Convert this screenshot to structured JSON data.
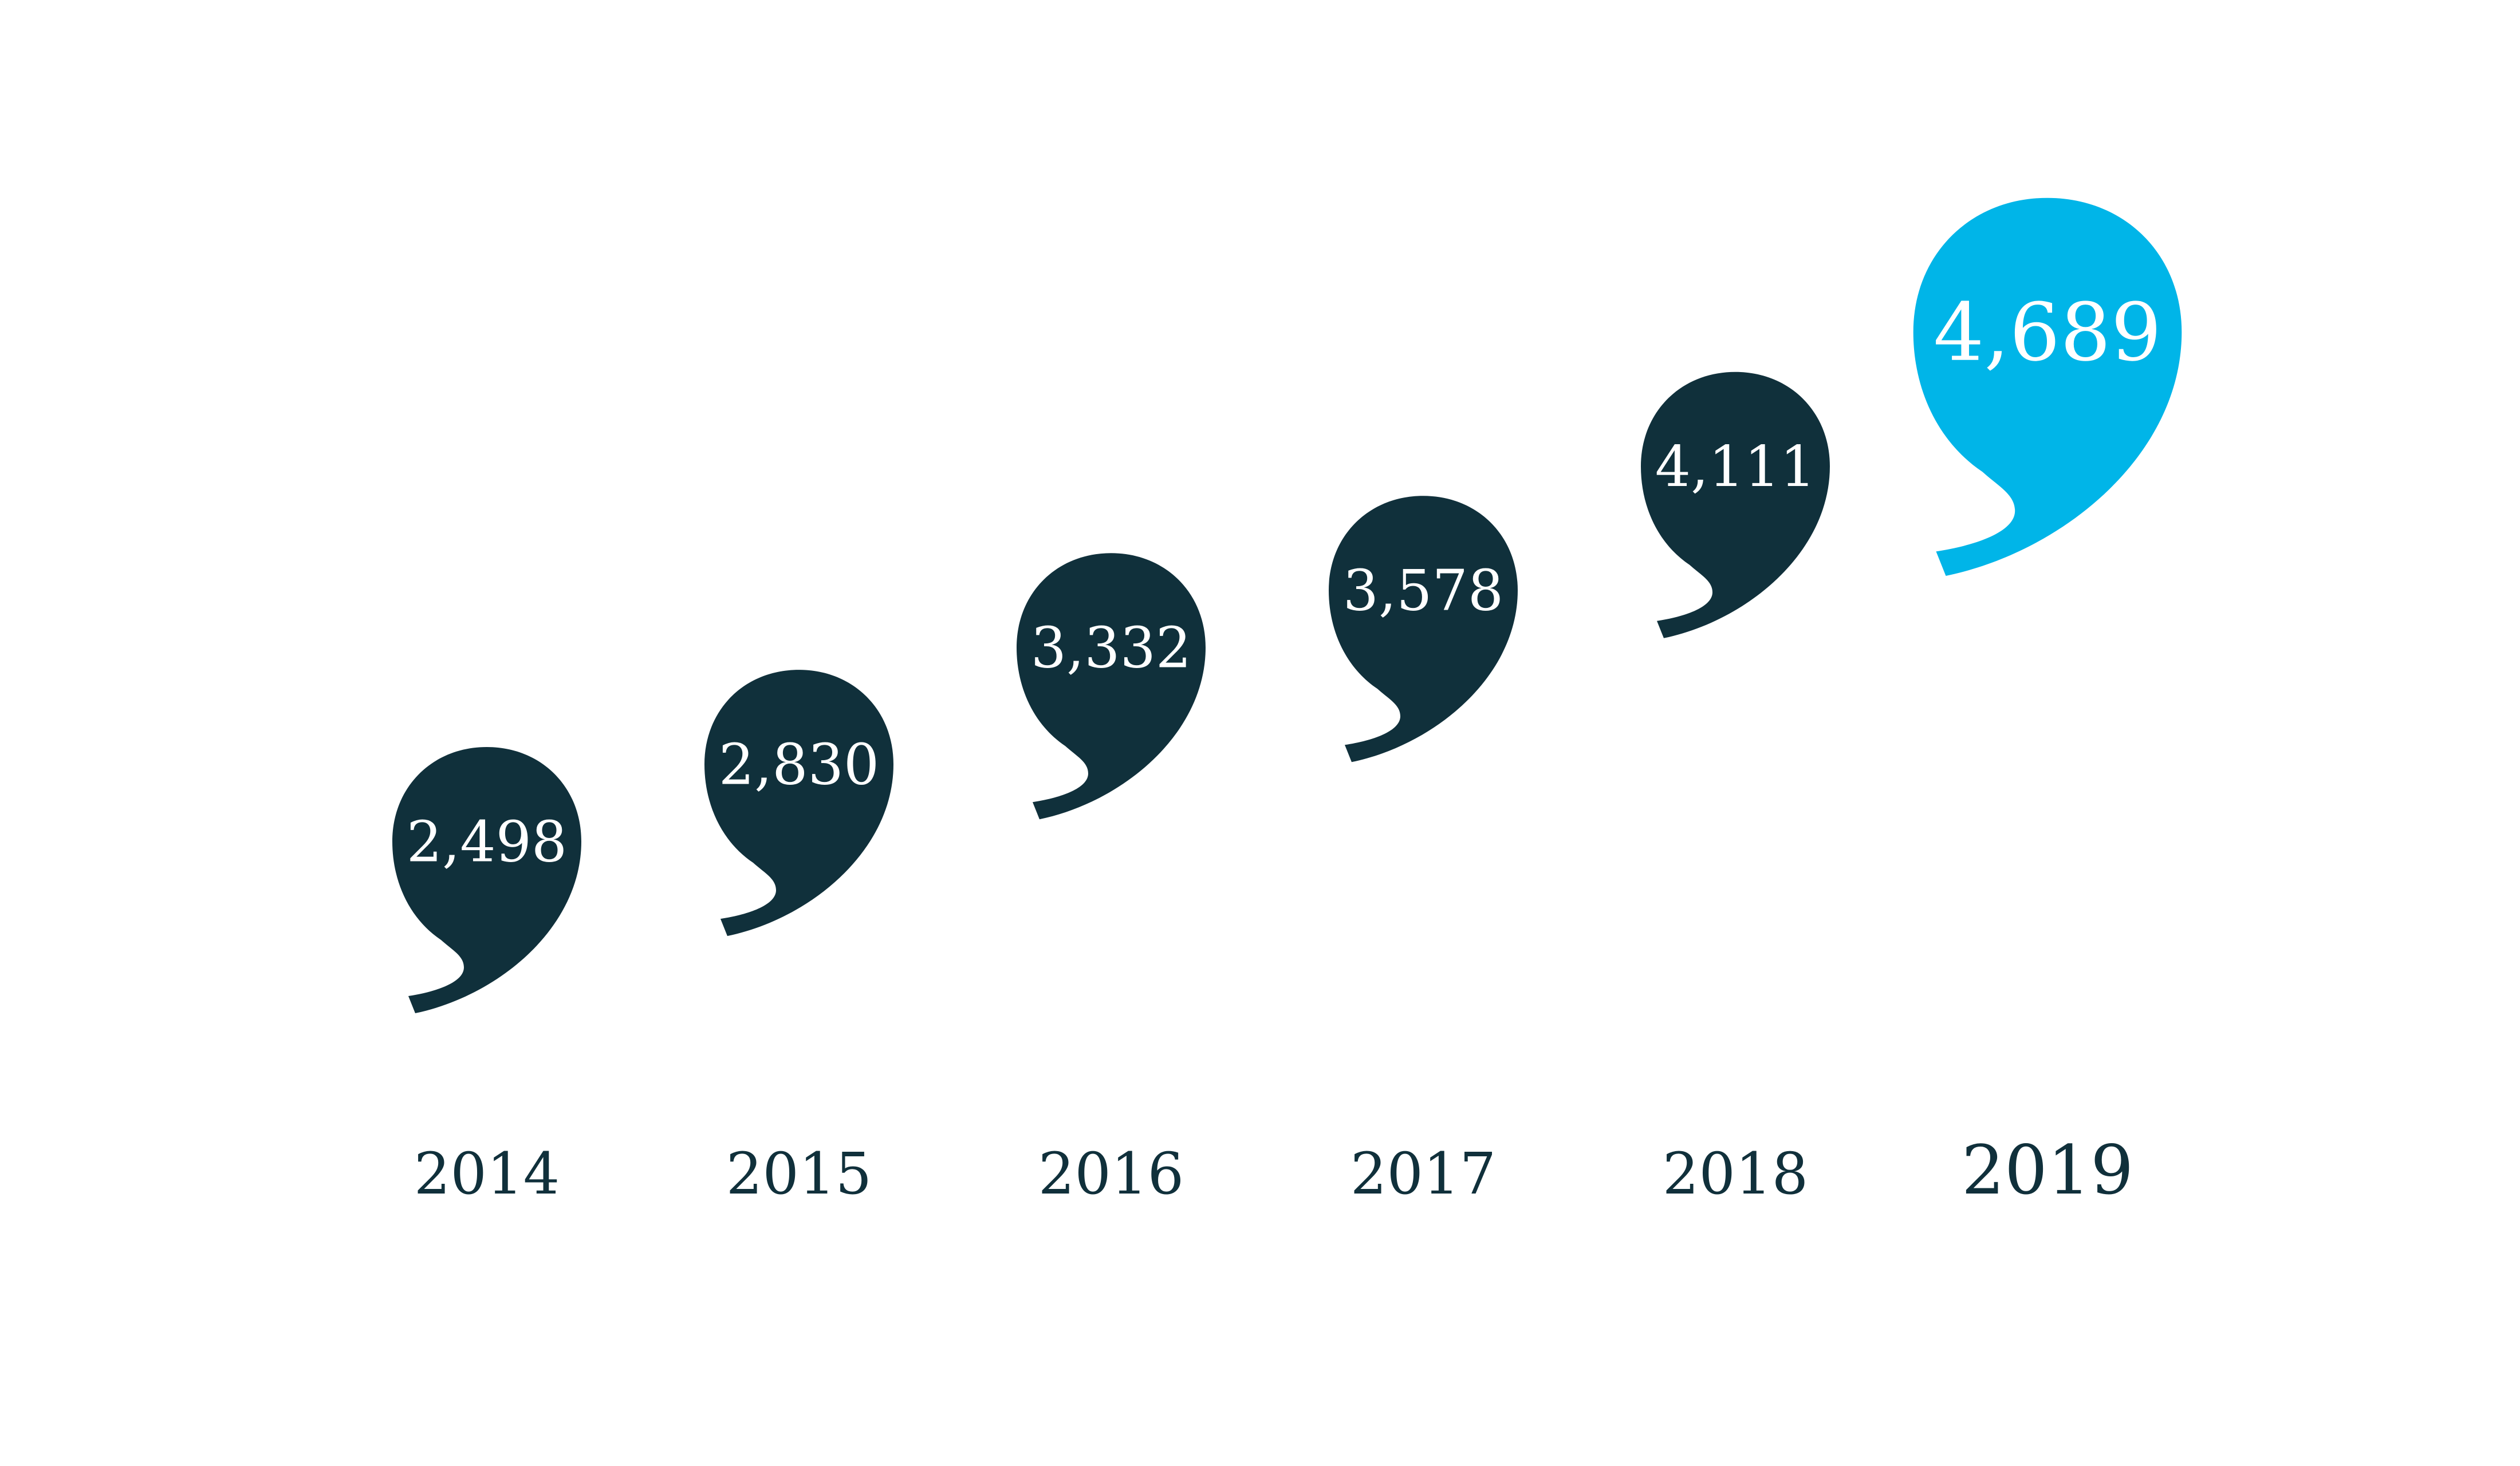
{
  "chart_data": {
    "type": "bar",
    "title": "",
    "xlabel": "",
    "ylabel": "",
    "categories": [
      "2014",
      "2015",
      "2016",
      "2017",
      "2018",
      "2019"
    ],
    "values": [
      2498,
      2830,
      3332,
      3578,
      4111,
      4689
    ],
    "value_labels": [
      "2,498",
      "2,830",
      "3,332",
      "3,578",
      "4,111",
      "4,689"
    ],
    "marker": "speech-bubble-icon",
    "colors": {
      "default": "#10303b",
      "highlight": "#00b5e8",
      "value_text": "#ffffff",
      "year_text": "#10303b"
    },
    "highlight_index": 5,
    "grid": false,
    "legend": "none"
  }
}
